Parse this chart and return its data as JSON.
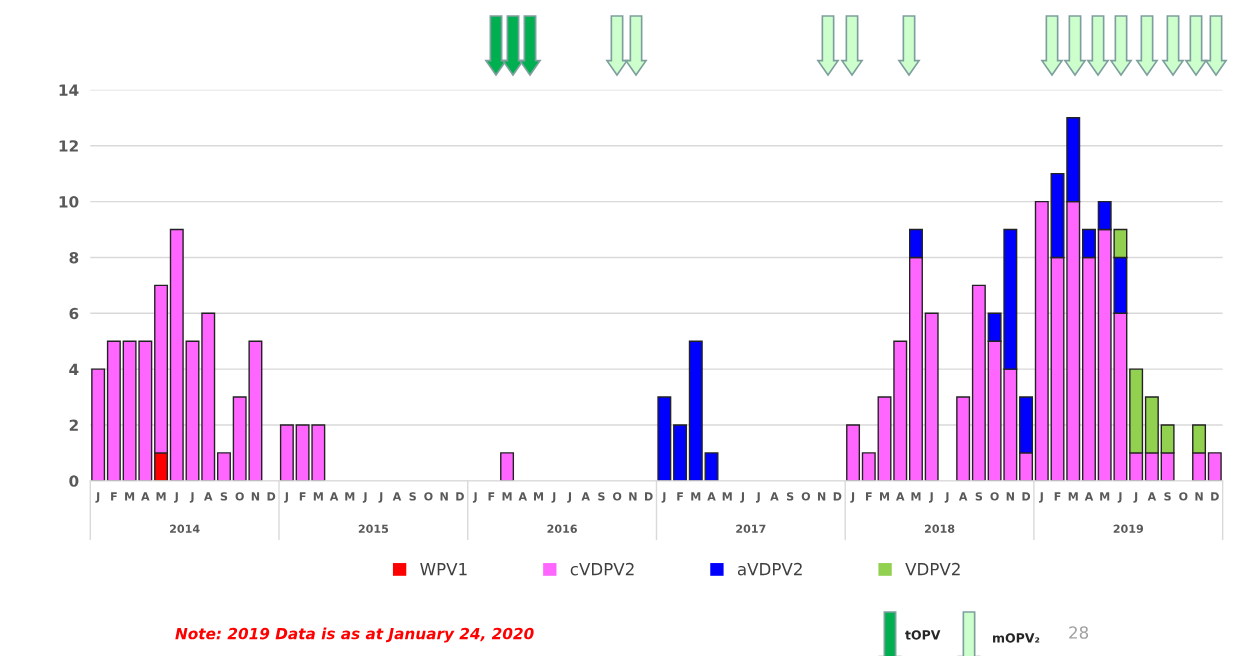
{
  "chart_data": {
    "type": "bar",
    "stacked": true,
    "categories": [
      "J",
      "F",
      "M",
      "A",
      "M",
      "J",
      "J",
      "A",
      "S",
      "O",
      "N",
      "D",
      "J",
      "F",
      "M",
      "A",
      "M",
      "J",
      "J",
      "A",
      "S",
      "O",
      "N",
      "D",
      "J",
      "F",
      "M",
      "A",
      "M",
      "J",
      "J",
      "A",
      "S",
      "O",
      "N",
      "D",
      "J",
      "F",
      "M",
      "A",
      "M",
      "J",
      "J",
      "A",
      "S",
      "O",
      "N",
      "D",
      "J",
      "F",
      "M",
      "A",
      "M",
      "J",
      "J",
      "A",
      "S",
      "O",
      "N",
      "D",
      "J",
      "F",
      "M",
      "A",
      "M",
      "J",
      "J",
      "A",
      "S",
      "O",
      "N",
      "D"
    ],
    "series": [
      {
        "name": "WPV1",
        "color": "#ff0000",
        "values": [
          0,
          0,
          0,
          0,
          1,
          0,
          0,
          0,
          0,
          0,
          0,
          0,
          0,
          0,
          0,
          0,
          0,
          0,
          0,
          0,
          0,
          0,
          0,
          0,
          0,
          0,
          0,
          0,
          0,
          0,
          0,
          0,
          0,
          0,
          0,
          0,
          0,
          0,
          0,
          0,
          0,
          0,
          0,
          0,
          0,
          0,
          0,
          0,
          0,
          0,
          0,
          0,
          0,
          0,
          0,
          0,
          0,
          0,
          0,
          0,
          0,
          0,
          0,
          0,
          0,
          0,
          0,
          0,
          0,
          0,
          0,
          0
        ]
      },
      {
        "name": "cVDPV2",
        "color": "#ff66ff",
        "values": [
          4,
          5,
          5,
          5,
          6,
          9,
          5,
          6,
          1,
          3,
          5,
          0,
          2,
          2,
          2,
          0,
          0,
          0,
          0,
          0,
          0,
          0,
          0,
          0,
          0,
          0,
          1,
          0,
          0,
          0,
          0,
          0,
          0,
          0,
          0,
          0,
          0,
          0,
          0,
          0,
          0,
          0,
          0,
          0,
          0,
          0,
          0,
          0,
          2,
          1,
          3,
          5,
          8,
          6,
          0,
          3,
          7,
          5,
          4,
          1,
          10,
          8,
          10,
          8,
          9,
          6,
          1,
          1,
          1,
          0,
          1,
          1
        ]
      },
      {
        "name": "aVDPV2",
        "color": "#0000ff",
        "values": [
          0,
          0,
          0,
          0,
          0,
          0,
          0,
          0,
          0,
          0,
          0,
          0,
          0,
          0,
          0,
          0,
          0,
          0,
          0,
          0,
          0,
          0,
          0,
          0,
          0,
          0,
          0,
          0,
          0,
          0,
          0,
          0,
          0,
          0,
          0,
          0,
          3,
          2,
          5,
          1,
          0,
          0,
          0,
          0,
          0,
          0,
          0,
          0,
          0,
          0,
          0,
          0,
          1,
          0,
          0,
          0,
          0,
          1,
          5,
          2,
          0,
          3,
          3,
          1,
          1,
          2,
          0,
          0,
          0,
          0,
          0,
          0
        ]
      },
      {
        "name": "VDPV2",
        "color": "#92d050",
        "values": [
          0,
          0,
          0,
          0,
          0,
          0,
          0,
          0,
          0,
          0,
          0,
          0,
          0,
          0,
          0,
          0,
          0,
          0,
          0,
          0,
          0,
          0,
          0,
          0,
          0,
          0,
          0,
          0,
          0,
          0,
          0,
          0,
          0,
          0,
          0,
          0,
          0,
          0,
          0,
          0,
          0,
          0,
          0,
          0,
          0,
          0,
          0,
          0,
          0,
          0,
          0,
          0,
          0,
          0,
          0,
          0,
          0,
          0,
          0,
          0,
          0,
          0,
          0,
          0,
          0,
          1,
          3,
          2,
          1,
          0,
          1,
          0
        ]
      }
    ],
    "ylim": [
      0,
      14
    ],
    "yticks": [
      0,
      2,
      4,
      6,
      8,
      10,
      12,
      14
    ],
    "grid": "y",
    "legend": "bottom",
    "annotations": [
      "2014",
      "2015",
      "2016",
      "2017",
      "2018",
      "2019",
      "Note: 2019 Data is as at January 24, 2020",
      "tOPV",
      "mOPV₂",
      "28"
    ]
  }
}
